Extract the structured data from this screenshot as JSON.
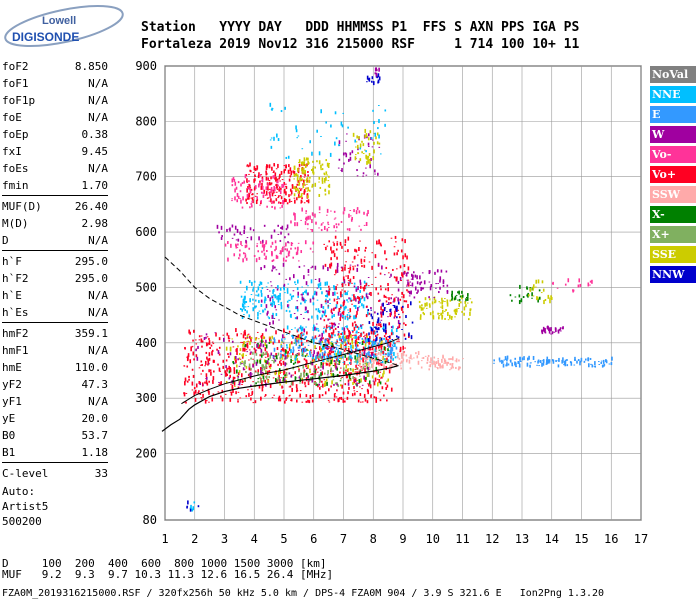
{
  "logo": {
    "top": "Lowell",
    "bottom": "DIGISONDE"
  },
  "header": {
    "line1": "Station   YYYY DAY   DDD HHMMSS P1  FFS S AXN PPS IGA PS",
    "line2": "Fortaleza 2019 Nov12 316 215000 RSF     1 714 100 10+ 11"
  },
  "params": [
    [
      {
        "k": "foF2",
        "v": "8.850"
      },
      {
        "k": "foF1",
        "v": "N/A"
      },
      {
        "k": "foF1p",
        "v": "N/A"
      },
      {
        "k": "foE",
        "v": "N/A"
      },
      {
        "k": "foEp",
        "v": "0.38"
      },
      {
        "k": "fxI",
        "v": "9.45"
      },
      {
        "k": "foEs",
        "v": "N/A"
      },
      {
        "k": "fmin",
        "v": "1.70"
      }
    ],
    [
      {
        "k": "MUF(D)",
        "v": "26.40"
      },
      {
        "k": "M(D)",
        "v": "2.98"
      },
      {
        "k": "D",
        "v": "N/A"
      }
    ],
    [
      {
        "k": "h`F",
        "v": "295.0"
      },
      {
        "k": "h`F2",
        "v": "295.0"
      },
      {
        "k": "h`E",
        "v": "N/A"
      },
      {
        "k": "h`Es",
        "v": "N/A"
      }
    ],
    [
      {
        "k": "hmF2",
        "v": "359.1"
      },
      {
        "k": "hmF1",
        "v": "N/A"
      },
      {
        "k": "hmE",
        "v": "110.0"
      },
      {
        "k": "yF2",
        "v": "47.3"
      },
      {
        "k": "yF1",
        "v": "N/A"
      },
      {
        "k": "yE",
        "v": "20.0"
      },
      {
        "k": "B0",
        "v": "53.7"
      },
      {
        "k": "B1",
        "v": "1.18"
      }
    ],
    [
      {
        "k": "C-level",
        "v": "33"
      }
    ]
  ],
  "auto": {
    "line1": "Auto:",
    "line2": "Artist5",
    "line3": "500200"
  },
  "legend": [
    {
      "label": "NoVal",
      "color": "#808080",
      "text": "#ffffff"
    },
    {
      "label": "NNE",
      "color": "#00bfff",
      "text": "#ffffff"
    },
    {
      "label": "E",
      "color": "#3399ff",
      "text": "#ffffff"
    },
    {
      "label": "W",
      "color": "#a000a0",
      "text": "#ffffff"
    },
    {
      "label": "Vo-",
      "color": "#ff3399",
      "text": "#ffffff"
    },
    {
      "label": "Vo+",
      "color": "#ff0022",
      "text": "#ffffff"
    },
    {
      "label": "SSW",
      "color": "#ffaaaa",
      "text": "#ffffff"
    },
    {
      "label": "X-",
      "color": "#008000",
      "text": "#ffffff"
    },
    {
      "label": "X+",
      "color": "#80b060",
      "text": "#ffffff"
    },
    {
      "label": "SSE",
      "color": "#cccc00",
      "text": "#ffffff"
    },
    {
      "label": "NNW",
      "color": "#0000cc",
      "text": "#ffffff"
    }
  ],
  "bottom": {
    "line1": "D     100  200  400  600  800 1000 1500 3000 [km]",
    "line2": "MUF   9.2  9.3  9.7 10.3 11.3 12.6 16.5 26.4 [MHz]"
  },
  "footer": "FZA0M_2019316215000.RSF / 320fx256h 50 kHz 5.0 km / DPS-4 FZA0M 904 / 3.9 S 321.6 E   Ion2Png 1.3.20",
  "chart_data": {
    "type": "scatter",
    "title": "",
    "xlabel": "",
    "ylabel": "",
    "xlim": [
      1,
      17
    ],
    "ylim": [
      80,
      900
    ],
    "x_ticks": [
      1,
      2,
      3,
      4,
      5,
      6,
      7,
      8,
      9,
      10,
      11,
      12,
      13,
      14,
      15,
      16,
      17
    ],
    "y_ticks": [
      80,
      200,
      300,
      400,
      500,
      600,
      700,
      800,
      900
    ],
    "grid": true,
    "curves": {
      "virtual_height_trace": {
        "x": [
          1.55,
          2.0,
          2.5,
          3.0,
          3.5,
          4.0,
          4.5,
          5.0,
          5.5,
          6.0,
          6.5,
          7.0,
          7.5,
          8.0,
          8.5,
          8.85
        ],
        "y": [
          290,
          305,
          316,
          326,
          333,
          340,
          346,
          351,
          358,
          365,
          372,
          379,
          386,
          393,
          400,
          408
        ]
      },
      "true_height_profile": {
        "x": [
          0.9,
          1.2,
          1.5,
          1.8,
          2.0,
          2.5,
          3.0,
          3.5,
          4.0,
          5.0,
          6.0,
          7.0,
          8.0,
          8.6,
          8.85
        ],
        "y": [
          240,
          252,
          262,
          280,
          288,
          303,
          312,
          318,
          322,
          329,
          335,
          341,
          349,
          355,
          359
        ]
      },
      "muf_curve_dashed": {
        "x": [
          1.0,
          1.5,
          2.0,
          2.5,
          3.0,
          3.5,
          4.0,
          4.5,
          5.0,
          5.5,
          6.0,
          6.5,
          7.0,
          7.5,
          8.0,
          8.5,
          8.85
        ],
        "y": [
          555,
          530,
          500,
          480,
          465,
          450,
          440,
          430,
          420,
          410,
          400,
          395,
          388,
          380,
          372,
          365,
          359
        ]
      }
    },
    "clusters": [
      {
        "color": "#ff0022",
        "x": [
          1.6,
          8.6
        ],
        "y": [
          290,
          420
        ],
        "n": 700
      },
      {
        "color": "#cccc00",
        "x": [
          3.0,
          8.5
        ],
        "y": [
          320,
          410
        ],
        "n": 180
      },
      {
        "color": "#00bfff",
        "x": [
          5.0,
          8.8
        ],
        "y": [
          360,
          430
        ],
        "n": 160
      },
      {
        "color": "#80b060",
        "x": [
          3.5,
          8.0
        ],
        "y": [
          320,
          380
        ],
        "n": 120
      },
      {
        "color": "#008000",
        "x": [
          3.0,
          8.5
        ],
        "y": [
          320,
          400
        ],
        "n": 90
      },
      {
        "color": "#a000a0",
        "x": [
          2.0,
          8.0
        ],
        "y": [
          320,
          420
        ],
        "n": 120
      },
      {
        "color": "#ffaaaa",
        "x": [
          7.5,
          9.5
        ],
        "y": [
          350,
          380
        ],
        "n": 80
      },
      {
        "color": "#3399ff",
        "x": [
          4.5,
          8.8
        ],
        "y": [
          370,
          410
        ],
        "n": 100
      },
      {
        "color": "#00bfff",
        "x": [
          3.5,
          7.8
        ],
        "y": [
          440,
          510
        ],
        "n": 220
      },
      {
        "color": "#a000a0",
        "x": [
          4.2,
          8.9
        ],
        "y": [
          420,
          540
        ],
        "n": 160
      },
      {
        "color": "#ff0022",
        "x": [
          6.3,
          9.2
        ],
        "y": [
          380,
          590
        ],
        "n": 300
      },
      {
        "color": "#0000cc",
        "x": [
          7.8,
          9.3
        ],
        "y": [
          400,
          470
        ],
        "n": 60
      },
      {
        "color": "#cccc00",
        "x": [
          9.5,
          11.3
        ],
        "y": [
          440,
          480
        ],
        "n": 80
      },
      {
        "color": "#a000a0",
        "x": [
          9.0,
          10.5
        ],
        "y": [
          480,
          530
        ],
        "n": 60
      },
      {
        "color": "#ff3399",
        "x": [
          3.0,
          6.0
        ],
        "y": [
          545,
          580
        ],
        "n": 90
      },
      {
        "color": "#a000a0",
        "x": [
          2.6,
          5.2
        ],
        "y": [
          580,
          610
        ],
        "n": 40
      },
      {
        "color": "#ff3399",
        "x": [
          5.2,
          7.8
        ],
        "y": [
          600,
          640
        ],
        "n": 70
      },
      {
        "color": "#ff0022",
        "x": [
          3.7,
          5.8
        ],
        "y": [
          650,
          720
        ],
        "n": 220
      },
      {
        "color": "#cccc00",
        "x": [
          5.3,
          6.5
        ],
        "y": [
          660,
          730
        ],
        "n": 100
      },
      {
        "color": "#ff3399",
        "x": [
          3.2,
          5.0
        ],
        "y": [
          640,
          700
        ],
        "n": 80
      },
      {
        "color": "#a000a0",
        "x": [
          6.8,
          8.2
        ],
        "y": [
          700,
          780
        ],
        "n": 40
      },
      {
        "color": "#cccc00",
        "x": [
          7.3,
          8.2
        ],
        "y": [
          720,
          780
        ],
        "n": 40
      },
      {
        "color": "#00bfff",
        "x": [
          4.5,
          8.5
        ],
        "y": [
          730,
          830
        ],
        "n": 50
      },
      {
        "color": "#0000cc",
        "x": [
          7.7,
          8.2
        ],
        "y": [
          865,
          880
        ],
        "n": 15
      },
      {
        "color": "#a000a0",
        "x": [
          8.0,
          8.2
        ],
        "y": [
          880,
          895
        ],
        "n": 6
      },
      {
        "color": "#3399ff",
        "x": [
          12.0,
          16.0
        ],
        "y": [
          355,
          370
        ],
        "n": 120
      },
      {
        "color": "#ffaaaa",
        "x": [
          9.6,
          11.0
        ],
        "y": [
          350,
          375
        ],
        "n": 60
      },
      {
        "color": "#a000a0",
        "x": [
          13.6,
          14.6
        ],
        "y": [
          415,
          425
        ],
        "n": 30
      },
      {
        "color": "#008000",
        "x": [
          10.6,
          11.2
        ],
        "y": [
          475,
          490
        ],
        "n": 20
      },
      {
        "color": "#008000",
        "x": [
          12.5,
          13.6
        ],
        "y": [
          470,
          500
        ],
        "n": 20
      },
      {
        "color": "#cccc00",
        "x": [
          13.2,
          14.0
        ],
        "y": [
          470,
          510
        ],
        "n": 20
      },
      {
        "color": "#ff3399",
        "x": [
          14.0,
          15.4
        ],
        "y": [
          490,
          510
        ],
        "n": 15
      },
      {
        "color": "#0000cc",
        "x": [
          1.7,
          2.1
        ],
        "y": [
          95,
          110
        ],
        "n": 6
      },
      {
        "color": "#00bfff",
        "x": [
          1.8,
          2.1
        ],
        "y": [
          95,
          110
        ],
        "n": 4
      }
    ]
  }
}
